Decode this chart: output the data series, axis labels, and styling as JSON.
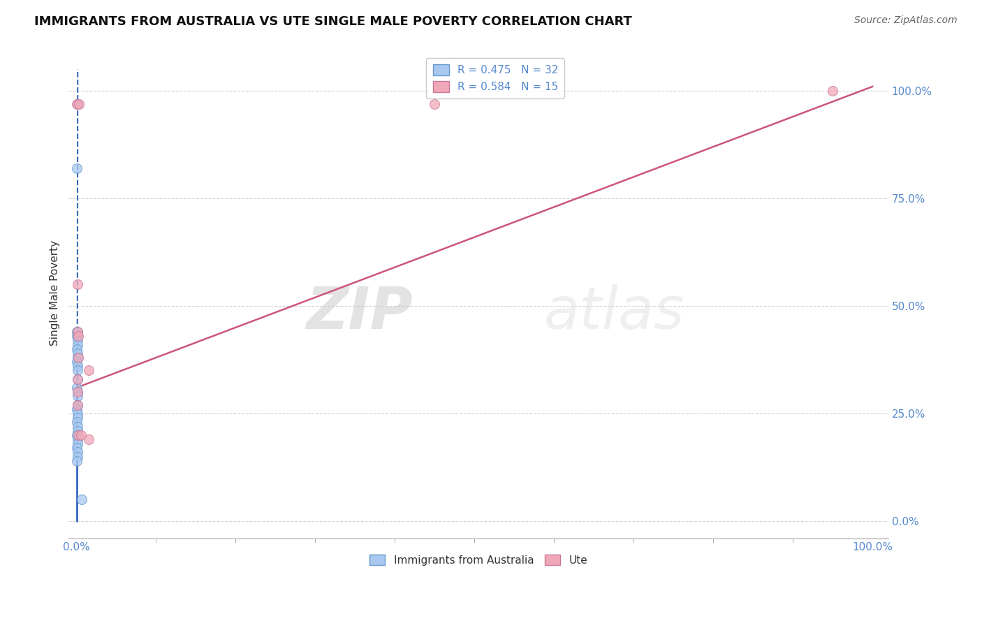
{
  "title": "IMMIGRANTS FROM AUSTRALIA VS UTE SINGLE MALE POVERTY CORRELATION CHART",
  "source": "Source: ZipAtlas.com",
  "ylabel": "Single Male Poverty",
  "watermark_text": "ZIP",
  "watermark_text2": "atlas",
  "legend_entries": [
    {
      "label": "R = 0.475   N = 32",
      "face": "#a8c8f0",
      "edge": "#6699cc"
    },
    {
      "label": "R = 0.584   N = 15",
      "face": "#f0a8b8",
      "edge": "#cc7799"
    }
  ],
  "bottom_legend": [
    {
      "label": "Immigrants from Australia",
      "face": "#a8c8f0",
      "edge": "#6699cc"
    },
    {
      "label": "Ute",
      "face": "#f0a8b8",
      "edge": "#cc7799"
    }
  ],
  "australia_points": [
    [
      0.001,
      0.97
    ],
    [
      0.0008,
      0.82
    ],
    [
      0.0008,
      0.44
    ],
    [
      0.0008,
      0.43
    ],
    [
      0.0012,
      0.44
    ],
    [
      0.001,
      0.42
    ],
    [
      0.001,
      0.41
    ],
    [
      0.0009,
      0.4
    ],
    [
      0.0011,
      0.39
    ],
    [
      0.001,
      0.38
    ],
    [
      0.0009,
      0.37
    ],
    [
      0.001,
      0.36
    ],
    [
      0.0011,
      0.35
    ],
    [
      0.001,
      0.33
    ],
    [
      0.0009,
      0.31
    ],
    [
      0.001,
      0.3
    ],
    [
      0.0011,
      0.29
    ],
    [
      0.001,
      0.27
    ],
    [
      0.0009,
      0.26
    ],
    [
      0.001,
      0.25
    ],
    [
      0.001,
      0.24
    ],
    [
      0.0009,
      0.23
    ],
    [
      0.001,
      0.22
    ],
    [
      0.001,
      0.21
    ],
    [
      0.0009,
      0.2
    ],
    [
      0.001,
      0.19
    ],
    [
      0.001,
      0.18
    ],
    [
      0.0009,
      0.17
    ],
    [
      0.001,
      0.16
    ],
    [
      0.001,
      0.15
    ],
    [
      0.0009,
      0.14
    ],
    [
      0.007,
      0.05
    ]
  ],
  "ute_points": [
    [
      0.0008,
      0.97
    ],
    [
      0.003,
      0.97
    ],
    [
      0.001,
      0.55
    ],
    [
      0.0015,
      0.44
    ],
    [
      0.0025,
      0.43
    ],
    [
      0.002,
      0.38
    ],
    [
      0.0015,
      0.33
    ],
    [
      0.001,
      0.3
    ],
    [
      0.0012,
      0.27
    ],
    [
      0.002,
      0.2
    ],
    [
      0.006,
      0.2
    ],
    [
      0.015,
      0.35
    ],
    [
      0.015,
      0.19
    ],
    [
      0.45,
      0.97
    ],
    [
      0.95,
      1.0
    ]
  ],
  "aus_trend_dashed": [
    0.0005,
    0.1,
    0.0012,
    0.97
  ],
  "ute_trend": [
    0.0,
    0.31,
    1.0,
    1.01
  ],
  "xlim": [
    -0.01,
    1.02
  ],
  "ylim": [
    -0.04,
    1.1
  ],
  "xtick_minor_count": 10,
  "xtick_labels_shown": [
    "0.0%",
    "100.0%"
  ],
  "ytick_labels": [
    "0.0%",
    "25.0%",
    "50.0%",
    "75.0%",
    "100.0%"
  ],
  "ytick_positions": [
    0.0,
    0.25,
    0.5,
    0.75,
    1.0
  ],
  "grid_color": "#cccccc",
  "background_color": "#ffffff",
  "title_fontsize": 13,
  "tick_label_color": "#5588cc",
  "marker_size": 100,
  "aus_color": "#a8c8f0",
  "aus_edge": "#6699cc",
  "ute_color": "#f0a8b8",
  "ute_edge": "#cc7799",
  "aus_line_color": "#3366bb",
  "ute_line_color": "#cc5577"
}
